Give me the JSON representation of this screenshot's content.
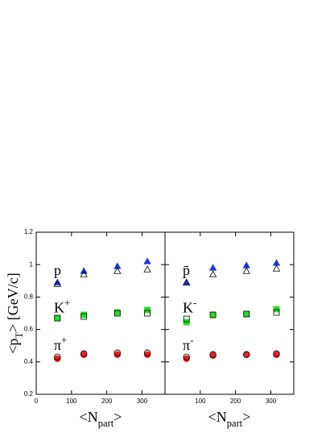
{
  "chart_data": [
    {
      "type": "scatter",
      "xlim": [
        0,
        365
      ],
      "xticks": [
        0,
        100,
        200,
        300
      ],
      "ylim": [
        0.2,
        1.2
      ],
      "yticks": [
        0.2,
        0.4,
        0.6,
        0.8,
        1,
        1.2
      ],
      "show_ytick_labels": true,
      "ylabel": {
        "text": "<p",
        "sub": "T",
        "tail": "> [GeV/c]"
      },
      "xlabel": {
        "text": "<N",
        "sub": "part",
        "tail": ">"
      },
      "labels": [
        {
          "text": "p"
        },
        {
          "text": "K",
          "sup": "+"
        },
        {
          "text": "π",
          "sup": "+"
        }
      ],
      "x": [
        60,
        135,
        230,
        315
      ],
      "series": [
        {
          "marker": "triangle",
          "filled": true,
          "color": "#1f35e0",
          "values": [
            0.89,
            0.96,
            0.99,
            1.02
          ]
        },
        {
          "marker": "triangle",
          "filled": false,
          "color": "#000000",
          "values": [
            0.88,
            0.94,
            0.96,
            0.97
          ]
        },
        {
          "marker": "square",
          "filled": true,
          "color": "#22e022",
          "values": [
            0.67,
            0.69,
            0.705,
            0.72
          ]
        },
        {
          "marker": "square",
          "filled": false,
          "color": "#000000",
          "values": [
            0.67,
            0.68,
            0.7,
            0.7
          ]
        },
        {
          "marker": "circle",
          "filled": true,
          "color": "#e82020",
          "values": [
            0.42,
            0.445,
            0.445,
            0.445
          ]
        },
        {
          "marker": "circle",
          "filled": false,
          "color": "#000000",
          "values": [
            0.43,
            0.45,
            0.455,
            0.455
          ]
        }
      ]
    },
    {
      "type": "scatter",
      "xlim": [
        0,
        365
      ],
      "xticks": [
        100,
        200,
        300
      ],
      "ylim": [
        0.2,
        1.2
      ],
      "yticks": [
        0.2,
        0.4,
        0.6,
        0.8,
        1,
        1.2
      ],
      "show_ytick_labels": false,
      "xlabel": {
        "text": "<N",
        "sub": "part",
        "tail": ">"
      },
      "labels": [
        {
          "text": "p̄"
        },
        {
          "text": "K",
          "sup": "-"
        },
        {
          "text": "π",
          "sup": "-"
        }
      ],
      "x": [
        61,
        136,
        231,
        316
      ],
      "series": [
        {
          "marker": "triangle",
          "filled": true,
          "color": "#1f35e0",
          "values": [
            0.89,
            0.98,
            0.995,
            1.01
          ]
        },
        {
          "marker": "triangle",
          "filled": false,
          "color": "#000000",
          "values": [
            0.89,
            0.94,
            0.96,
            0.975
          ]
        },
        {
          "marker": "square",
          "filled": true,
          "color": "#22e022",
          "values": [
            0.645,
            0.69,
            0.695,
            0.725
          ]
        },
        {
          "marker": "square",
          "filled": false,
          "color": "#000000",
          "values": [
            0.665,
            0.69,
            0.695,
            0.705
          ]
        },
        {
          "marker": "circle",
          "filled": true,
          "color": "#e82020",
          "values": [
            0.42,
            0.44,
            0.445,
            0.445
          ]
        },
        {
          "marker": "circle",
          "filled": false,
          "color": "#000000",
          "values": [
            0.43,
            0.445,
            0.445,
            0.45
          ]
        }
      ]
    }
  ]
}
